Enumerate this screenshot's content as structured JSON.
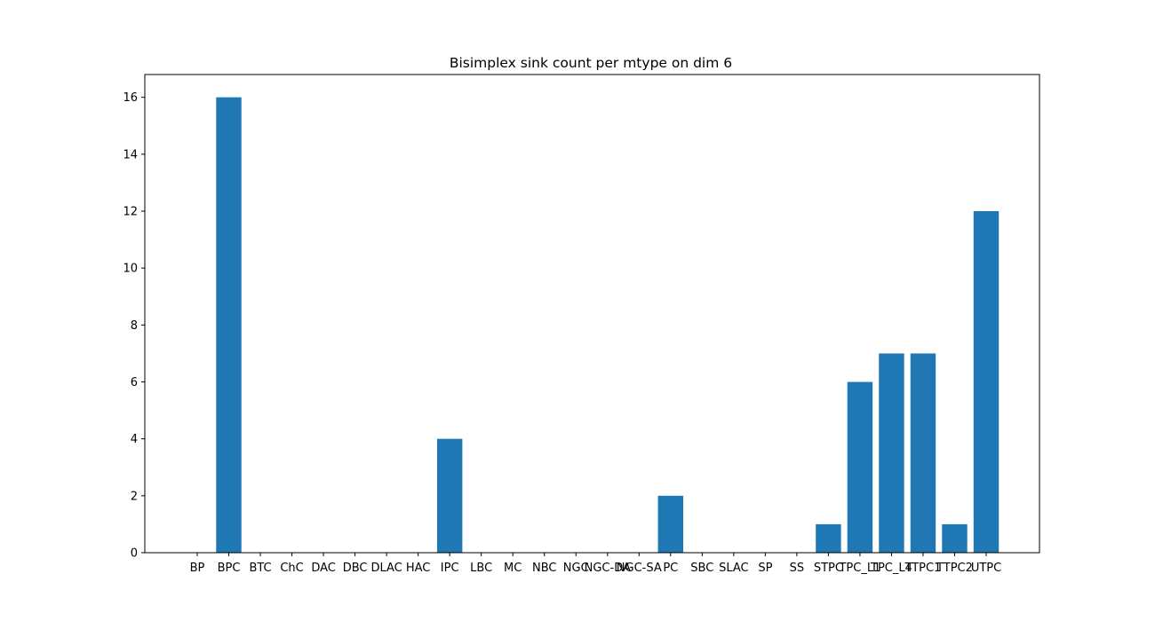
{
  "chart_data": {
    "type": "bar",
    "title": "Bisimplex sink count per mtype on dim 6",
    "xlabel": "",
    "ylabel": "",
    "categories": [
      "BP",
      "BPC",
      "BTC",
      "ChC",
      "DAC",
      "DBC",
      "DLAC",
      "HAC",
      "IPC",
      "LBC",
      "MC",
      "NBC",
      "NGC",
      "NGC-DA",
      "NGC-SA",
      "PC",
      "SBC",
      "SLAC",
      "SP",
      "SS",
      "STPC",
      "TPC_L1",
      "TPC_L4",
      "TTPC1",
      "TTPC2",
      "UTPC"
    ],
    "values": [
      0,
      16,
      0,
      0,
      0,
      0,
      0,
      0,
      4,
      0,
      0,
      0,
      0,
      0,
      0,
      2,
      0,
      0,
      0,
      0,
      1,
      6,
      7,
      7,
      1,
      12
    ],
    "ylim": [
      0,
      16.8
    ],
    "yticks": [
      0,
      2,
      4,
      6,
      8,
      10,
      12,
      14,
      16
    ],
    "bar_color": "#1f77b4",
    "grid": false,
    "legend": "none"
  }
}
